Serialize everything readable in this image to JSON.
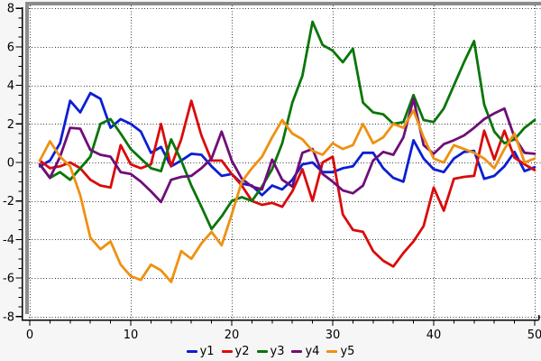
{
  "chart": {
    "background": "#f6f6f6",
    "plot_background": "#ffffff",
    "frame_color": "#8c8c8c",
    "grid_color": "#3c3c3c",
    "axis_color": "#000000",
    "x_axis": {
      "tick_labels": [
        "0",
        "10",
        "20",
        "30",
        "40",
        "50"
      ],
      "ticks": [
        0,
        10,
        20,
        30,
        40,
        50
      ],
      "minor_step": 2
    },
    "y_axis": {
      "tick_labels": [
        "-8",
        "-6",
        "-4",
        "-2",
        "0",
        "2",
        "4",
        "6",
        "8"
      ],
      "ticks": [
        -8,
        -6,
        -4,
        -2,
        0,
        2,
        4,
        6,
        8
      ],
      "minor_step": 0.5
    }
  },
  "chart_data": {
    "type": "line",
    "title": "",
    "xlabel": "",
    "ylabel": "",
    "xlim": [
      -0.2,
      50.6
    ],
    "ylim": [
      -8.2,
      8.2
    ],
    "grid": "dotted",
    "legend_position": "bottom-center",
    "x": [
      1,
      2,
      3,
      4,
      5,
      6,
      7,
      8,
      9,
      10,
      11,
      12,
      13,
      14,
      15,
      16,
      17,
      18,
      19,
      20,
      21,
      22,
      23,
      24,
      25,
      26,
      27,
      28,
      29,
      30,
      31,
      32,
      33,
      34,
      35,
      36,
      37,
      38,
      39,
      40,
      41,
      42,
      43,
      44,
      45,
      46,
      47,
      48,
      49,
      50
    ],
    "series": [
      {
        "name": "y1",
        "color": "#0b1fd3",
        "values": [
          -0.2,
          0.1,
          1.0,
          3.2,
          2.6,
          3.6,
          3.3,
          1.8,
          2.25,
          2.0,
          1.6,
          0.5,
          0.8,
          -0.2,
          0.1,
          0.45,
          0.4,
          -0.2,
          -0.7,
          -0.6,
          -1.1,
          -1.2,
          -1.7,
          -1.2,
          -1.4,
          -0.9,
          -0.1,
          0.0,
          -0.5,
          -0.5,
          -0.3,
          -0.2,
          0.5,
          0.5,
          -0.3,
          -0.8,
          -1.0,
          1.15,
          0.2,
          -0.35,
          -0.5,
          0.2,
          0.55,
          0.6,
          -0.85,
          -0.7,
          -0.2,
          0.55,
          -0.45,
          -0.25
        ]
      },
      {
        "name": "y2",
        "color": "#da0b0b",
        "values": [
          0.1,
          -0.3,
          -0.2,
          0.0,
          -0.3,
          -0.9,
          -1.2,
          -1.3,
          0.9,
          -0.1,
          -0.3,
          -0.1,
          2.0,
          -0.2,
          1.2,
          3.2,
          1.4,
          0.1,
          0.1,
          -0.6,
          -1.2,
          -2.0,
          -2.2,
          -2.1,
          -2.3,
          -1.5,
          -0.35,
          -2.0,
          0.0,
          0.3,
          -2.7,
          -3.5,
          -3.6,
          -4.6,
          -5.1,
          -5.4,
          -4.7,
          -4.1,
          -3.3,
          -1.3,
          -2.5,
          -0.85,
          -0.75,
          -0.7,
          1.65,
          0.15,
          1.65,
          0.25,
          -0.1,
          -0.4
        ]
      },
      {
        "name": "y3",
        "color": "#097609",
        "values": [
          -0.1,
          -0.8,
          -0.5,
          -0.9,
          -0.3,
          0.3,
          2.0,
          2.25,
          1.5,
          0.7,
          0.2,
          -0.3,
          -0.45,
          1.2,
          0.1,
          -1.2,
          -2.3,
          -3.45,
          -2.8,
          -2.0,
          -1.8,
          -2.0,
          -1.25,
          -0.35,
          1.0,
          3.1,
          4.5,
          7.3,
          6.1,
          5.8,
          5.2,
          5.9,
          3.1,
          2.6,
          2.5,
          2.0,
          2.1,
          3.5,
          2.2,
          2.1,
          2.8,
          4.0,
          5.2,
          6.3,
          3.0,
          1.6,
          1.0,
          1.2,
          1.8,
          2.2
        ]
      },
      {
        "name": "y4",
        "color": "#6f0e78",
        "values": [
          -0.1,
          -0.8,
          0.3,
          1.8,
          1.75,
          0.65,
          0.4,
          0.3,
          -0.5,
          -0.6,
          -1.0,
          -1.5,
          -2.05,
          -0.9,
          -0.75,
          -0.7,
          -0.3,
          0.2,
          1.6,
          0.1,
          -0.85,
          -1.25,
          -1.4,
          0.15,
          -0.9,
          -1.25,
          0.5,
          0.7,
          -0.6,
          -1.0,
          -1.45,
          -1.6,
          -1.2,
          0.1,
          0.55,
          0.4,
          1.3,
          3.3,
          0.9,
          0.45,
          0.95,
          1.15,
          1.4,
          1.8,
          2.25,
          2.55,
          2.8,
          1.3,
          0.5,
          0.45
        ]
      },
      {
        "name": "y5",
        "color": "#ee9111",
        "values": [
          0.1,
          1.1,
          0.3,
          -0.2,
          -1.7,
          -3.9,
          -4.5,
          -4.1,
          -5.3,
          -5.9,
          -6.1,
          -5.3,
          -5.6,
          -6.2,
          -4.6,
          -5.0,
          -4.2,
          -3.6,
          -4.3,
          -2.7,
          -1.0,
          -0.3,
          0.3,
          1.3,
          2.2,
          1.5,
          1.2,
          0.6,
          0.4,
          1.0,
          0.7,
          0.9,
          2.0,
          1.0,
          1.3,
          2.0,
          1.8,
          2.7,
          1.3,
          0.2,
          0.0,
          0.9,
          0.7,
          0.5,
          0.2,
          -0.3,
          0.7,
          1.5,
          0.0,
          0.2
        ]
      }
    ]
  },
  "legend": {
    "items": [
      {
        "label": "y1",
        "color": "#0b1fd3"
      },
      {
        "label": "y2",
        "color": "#da0b0b"
      },
      {
        "label": "y3",
        "color": "#097609"
      },
      {
        "label": "y4",
        "color": "#6f0e78"
      },
      {
        "label": "y5",
        "color": "#ee9111"
      }
    ]
  }
}
